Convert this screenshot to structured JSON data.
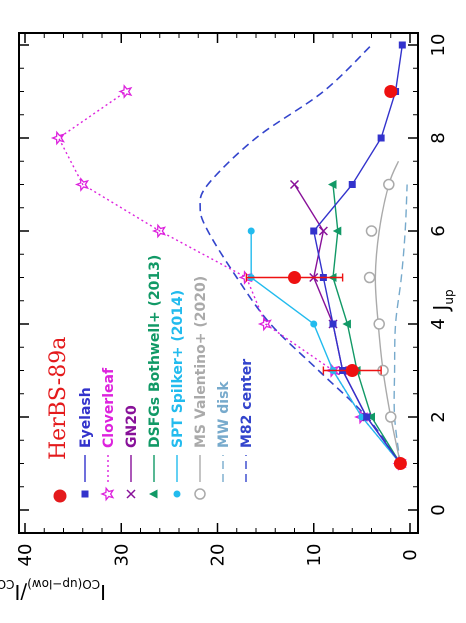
{
  "chart_data": {
    "type": "line",
    "orientation": "rotated-90",
    "xlabel": {
      "main": "J",
      "sub": "up"
    },
    "ylabel": {
      "main_a": "I",
      "sub_a": "CO(up−low)",
      "slash": "/",
      "main_b": "I",
      "sub_b": "CO(1−0)"
    },
    "xlim": [
      0,
      10
    ],
    "ylim": [
      0,
      40
    ],
    "xticks": [
      0,
      2,
      4,
      6,
      8,
      10
    ],
    "yticks": [
      0,
      10,
      20,
      30,
      40
    ],
    "xtick_labels": [
      "0",
      "2",
      "4",
      "6",
      "8",
      "10"
    ],
    "ytick_labels": [
      "0",
      "10",
      "20",
      "30",
      "40"
    ],
    "legend_title": "HerBS-89a",
    "legend_title_color": "#e41a1c",
    "legend_placement": "left",
    "series": [
      {
        "key": "eyelash",
        "name": "Eyelash",
        "color": "#3333cc",
        "dash": "solid",
        "marker": "square",
        "x": [
          1,
          2,
          3,
          4,
          5,
          6,
          7,
          8,
          9,
          10
        ],
        "y": [
          1,
          4.5,
          7,
          8,
          9,
          10,
          6,
          3,
          1.5,
          0.8
        ]
      },
      {
        "key": "cloverleaf",
        "name": "Cloverleaf",
        "color": "#dd22dd",
        "dash": "dotted",
        "marker": "star",
        "x": [
          1,
          2,
          3,
          4,
          5,
          6,
          7,
          8,
          9
        ],
        "y": [
          1,
          5,
          8,
          15,
          17,
          26,
          34,
          36.5,
          29.5
        ]
      },
      {
        "key": "gn20",
        "name": "GN20",
        "color": "#881199",
        "dash": "solid",
        "marker": "x",
        "x": [
          1,
          2,
          3,
          4,
          5,
          6,
          7
        ],
        "y": [
          1,
          4.5,
          7,
          8,
          10,
          9,
          12
        ]
      },
      {
        "key": "dsfg",
        "name": "DSFGs Bothwell+ (2013)",
        "color": "#119966",
        "dash": "solid",
        "marker": "triangle",
        "x": [
          1,
          2,
          3,
          4,
          5,
          6,
          7
        ],
        "y": [
          1,
          4,
          5.5,
          6.5,
          8,
          7.5,
          8
        ]
      },
      {
        "key": "spt",
        "name": "SPT Spilker+ (2014)",
        "color": "#22bbee",
        "dash": "solid",
        "marker": "circle",
        "x": [
          1,
          2,
          3,
          4,
          5,
          6
        ],
        "y": [
          1,
          5,
          8,
          10,
          16.5,
          16.5
        ]
      },
      {
        "key": "ms",
        "name": "MS Valentino+ (2020)",
        "color": "#aaaaaa",
        "dash": "solid",
        "marker": "open-circle",
        "x": [
          1,
          2,
          3,
          4,
          5,
          6,
          7
        ],
        "y": [
          1,
          2,
          2.8,
          3.2,
          4.2,
          4,
          2.2
        ],
        "curve_x": [
          1,
          2,
          3,
          4,
          5,
          6,
          7,
          7.5
        ],
        "curve_y": [
          1,
          2,
          2.8,
          3.3,
          3.6,
          3.2,
          2.2,
          1.2
        ]
      },
      {
        "key": "mw",
        "name": "MW disk",
        "color": "#77aacc",
        "dash": "dashed",
        "marker": "none",
        "x": [
          1,
          2,
          3,
          4,
          5,
          6,
          7
        ],
        "y": [
          1,
          1.6,
          1.6,
          1.5,
          0.9,
          0.5,
          0.3
        ]
      },
      {
        "key": "m82",
        "name": "M82 center",
        "color": "#3344cc",
        "dash": "dashed",
        "marker": "none",
        "x": [
          1,
          2,
          3,
          4,
          5,
          6,
          6.5,
          7,
          8,
          9,
          10
        ],
        "y": [
          1,
          4.5,
          9.5,
          14.5,
          18,
          21,
          21.8,
          21,
          16,
          9,
          4
        ]
      },
      {
        "key": "herbs",
        "name": "HerBS-89a",
        "color": "#ee1111",
        "dash": "none",
        "marker": "filled-circle-large",
        "x": [
          1,
          3,
          5,
          9
        ],
        "y": [
          1,
          6,
          12,
          2
        ],
        "yerr_low": [
          0,
          3,
          5,
          0.5
        ],
        "yerr_high": [
          0,
          3,
          5,
          0.5
        ]
      }
    ]
  }
}
